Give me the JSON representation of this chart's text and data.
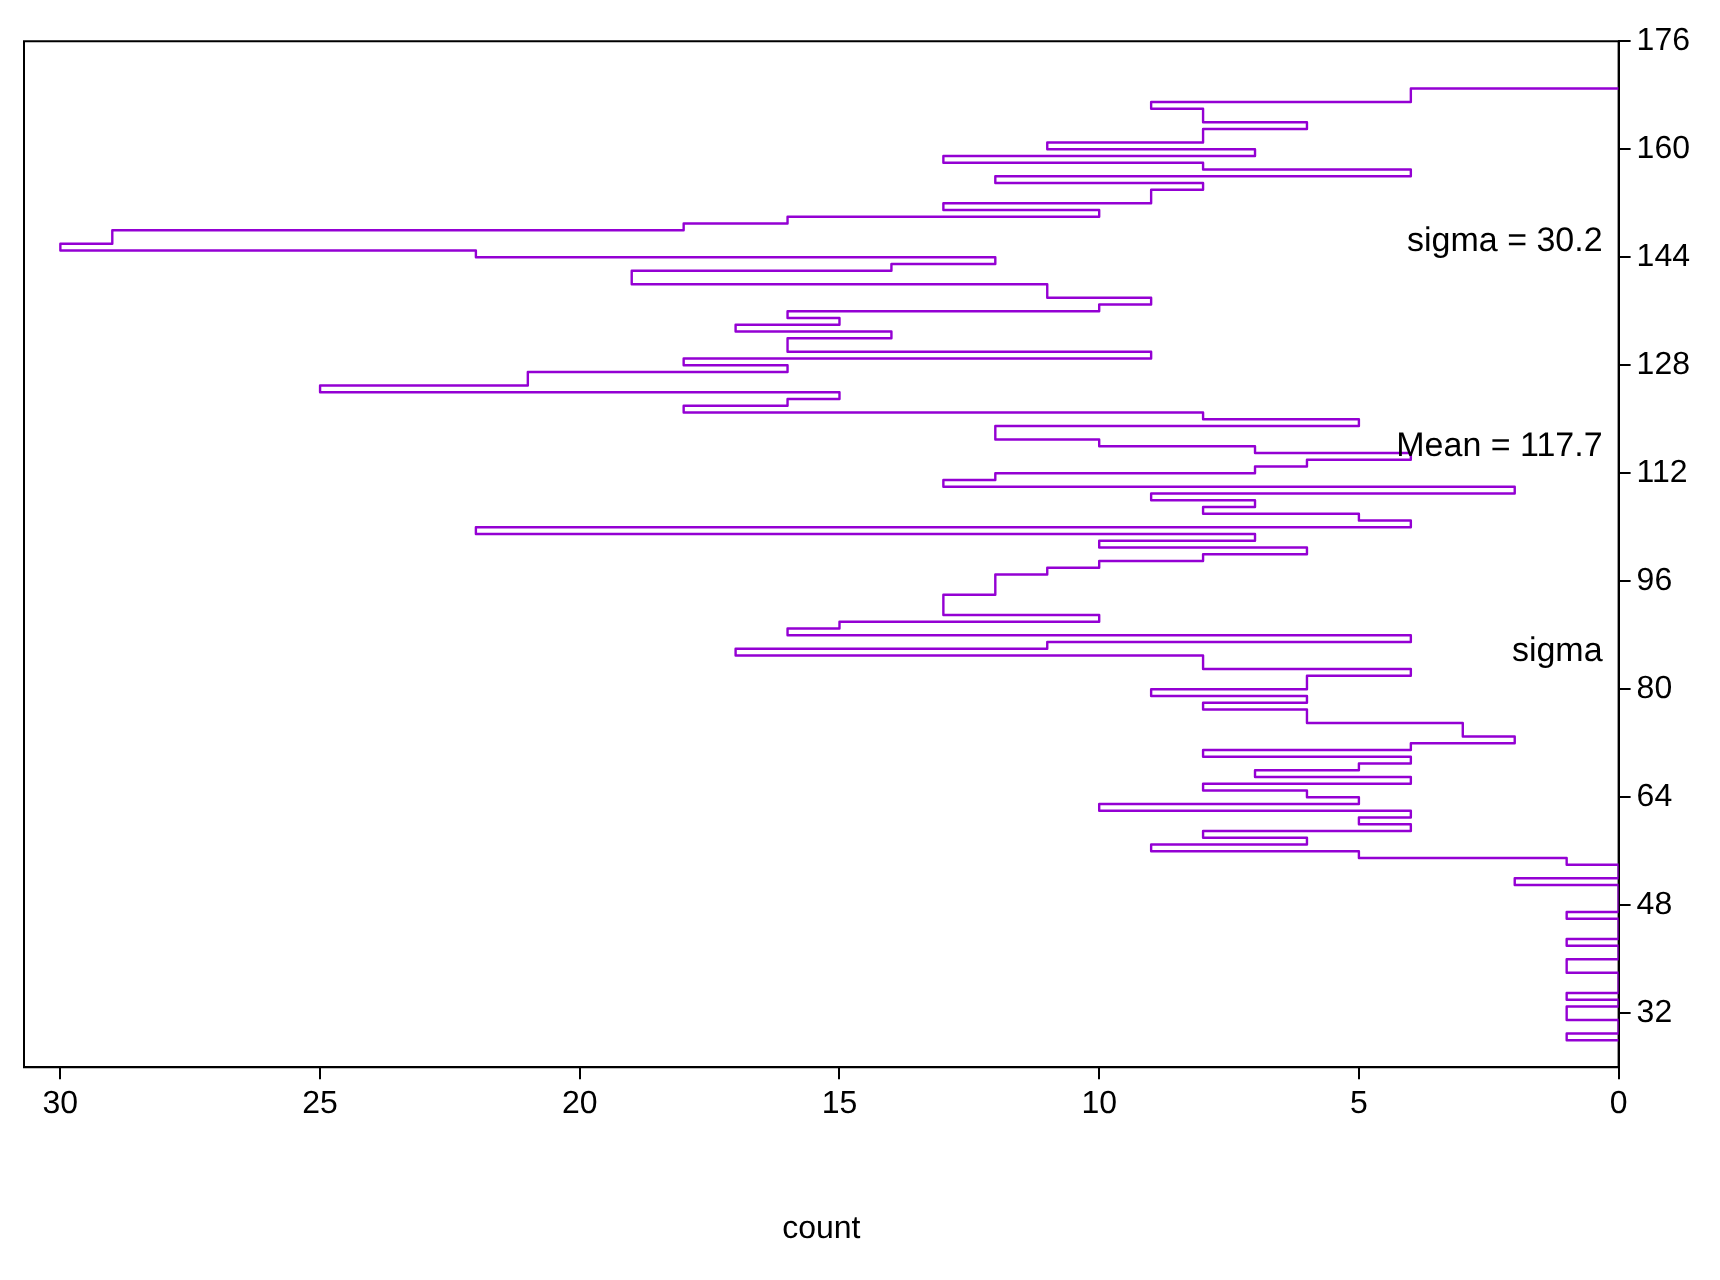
{
  "chart_data": {
    "type": "histogram",
    "orientation": "horizontal",
    "xlabel": "count",
    "color": "#9400d3",
    "bins": [
      28,
      29,
      30,
      31,
      32,
      33,
      34,
      35,
      36,
      37,
      38,
      39,
      40,
      41,
      42,
      43,
      44,
      45,
      46,
      47,
      48,
      49,
      50,
      51,
      52,
      53,
      54,
      55,
      56,
      57,
      58,
      59,
      60,
      61,
      62,
      63,
      64,
      65,
      66,
      67,
      68,
      69,
      70,
      71,
      72,
      73,
      74,
      75,
      76,
      77,
      78,
      79,
      80,
      81,
      82,
      83,
      84,
      85,
      86,
      87,
      88,
      89,
      90,
      91,
      92,
      93,
      94,
      95,
      96,
      97,
      98,
      99,
      100,
      101,
      102,
      103,
      104,
      105,
      106,
      107,
      108,
      109,
      110,
      111,
      112,
      113,
      114,
      115,
      116,
      117,
      118,
      119,
      120,
      121,
      122,
      123,
      124,
      125,
      126,
      127,
      128,
      129,
      130,
      131,
      132,
      133,
      134,
      135,
      136,
      137,
      138,
      139,
      140,
      141,
      142,
      143,
      144,
      145,
      146,
      147,
      148,
      149,
      150,
      151,
      152,
      153,
      154,
      155,
      156,
      157,
      158,
      159,
      160,
      161,
      162,
      163,
      164,
      165,
      166,
      167,
      168,
      169
    ],
    "values": [
      1,
      0,
      0,
      1,
      1,
      0,
      1,
      0,
      0,
      0,
      1,
      1,
      0,
      0,
      1,
      0,
      0,
      0,
      1,
      0,
      0,
      0,
      0,
      2,
      0,
      0,
      1,
      5,
      9,
      6,
      8,
      4,
      5,
      4,
      10,
      5,
      6,
      8,
      4,
      7,
      5,
      4,
      8,
      4,
      2,
      3,
      3,
      6,
      6,
      8,
      6,
      9,
      6,
      6,
      4,
      8,
      8,
      17,
      11,
      4,
      16,
      15,
      10,
      13,
      13,
      13,
      12,
      12,
      12,
      11,
      10,
      8,
      6,
      10,
      7,
      22,
      4,
      5,
      8,
      7,
      9,
      2,
      13,
      12,
      7,
      6,
      4,
      7,
      10,
      12,
      12,
      5,
      8,
      18,
      16,
      15,
      25,
      21,
      21,
      16,
      18,
      9,
      16,
      16,
      14,
      17,
      15,
      16,
      10,
      9,
      11,
      11,
      19,
      19,
      14,
      12,
      22,
      30,
      29,
      29,
      18,
      16,
      10,
      13,
      9,
      9,
      8,
      12,
      4,
      8,
      13,
      7,
      11,
      8,
      8,
      6,
      8,
      8,
      9,
      4,
      4
    ],
    "xlim": [
      30.7,
      0
    ],
    "xticks": [
      30,
      25,
      20,
      15,
      10,
      5,
      0
    ],
    "ylim": [
      24,
      176
    ],
    "yticks": [
      32,
      48,
      64,
      80,
      96,
      112,
      128,
      144,
      160,
      176
    ],
    "grid": false,
    "legend": false,
    "annotations": [
      "sigma = 30.2",
      "Mean = 117.7",
      "sigma"
    ]
  }
}
